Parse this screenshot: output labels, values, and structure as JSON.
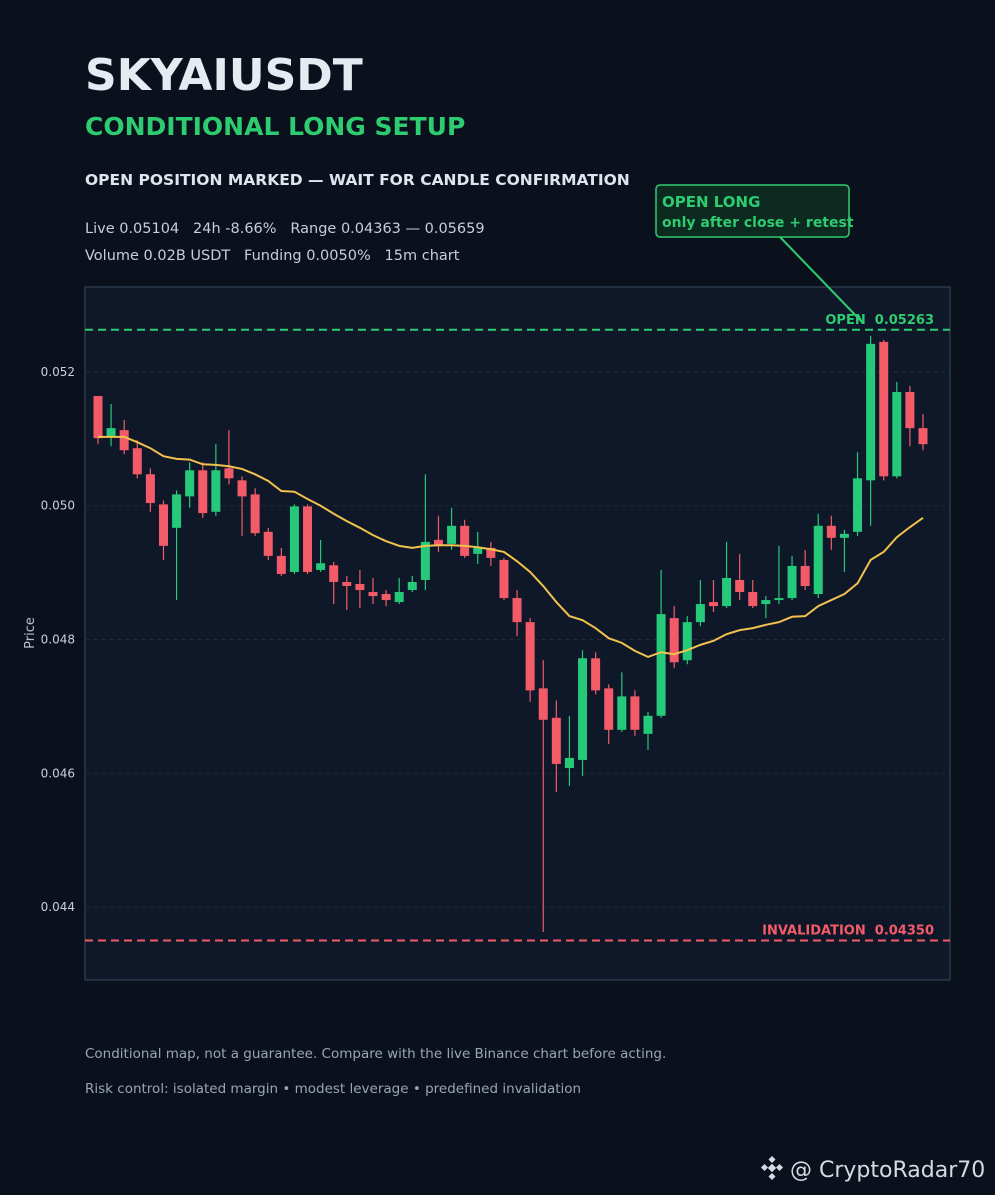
{
  "header": {
    "title": "SKYAIUSDT",
    "subtitle": "CONDITIONAL LONG SETUP",
    "status": "OPEN POSITION MARKED — WAIT FOR CANDLE CONFIRMATION",
    "stats": [
      "Live 0.05104   24h -8.66%   Range 0.04363 — 0.05659",
      "Volume 0.02B USDT   Funding 0.0050%   15m chart"
    ]
  },
  "chart_data": {
    "type": "candlestick",
    "ylabel": "Price",
    "open": [
      0.05164,
      0.05104,
      0.05113,
      0.05086,
      0.05047,
      0.05002,
      0.04967,
      0.05014,
      0.05053,
      0.04991,
      0.05056,
      0.05038,
      0.05017,
      0.04961,
      0.04925,
      0.04901,
      0.04999,
      0.04904,
      0.04911,
      0.04886,
      0.04883,
      0.04871,
      0.04868,
      0.04856,
      0.04874,
      0.04889,
      0.04949,
      0.04943,
      0.0497,
      0.04928,
      0.04937,
      0.04919,
      0.04862,
      0.04826,
      0.04727,
      0.04683,
      0.04608,
      0.0462,
      0.04772,
      0.04727,
      0.04665,
      0.04715,
      0.04659,
      0.04686,
      0.04832,
      0.04769,
      0.04826,
      0.04856,
      0.0485,
      0.04889,
      0.04871,
      0.04853,
      0.04859,
      0.04862,
      0.0491,
      0.04868,
      0.0497,
      0.04952,
      0.04961,
      0.05038,
      0.05245,
      0.05044,
      0.0517,
      0.05116
    ],
    "high": [
      0.05164,
      0.05152,
      0.05128,
      0.05098,
      0.05056,
      0.05008,
      0.05023,
      0.05065,
      0.05065,
      0.05092,
      0.05113,
      0.05044,
      0.05026,
      0.04967,
      0.04937,
      0.05002,
      0.05002,
      0.04949,
      0.04916,
      0.04895,
      0.04904,
      0.04892,
      0.04874,
      0.04892,
      0.04895,
      0.05047,
      0.04985,
      0.04997,
      0.04979,
      0.04961,
      0.04946,
      0.04922,
      0.04874,
      0.04832,
      0.04769,
      0.04709,
      0.04686,
      0.04784,
      0.04781,
      0.04733,
      0.04751,
      0.04724,
      0.04692,
      0.04904,
      0.0485,
      0.04835,
      0.04889,
      0.04889,
      0.04946,
      0.04928,
      0.04889,
      0.04865,
      0.0494,
      0.04925,
      0.04934,
      0.04988,
      0.04985,
      0.04964,
      0.0508,
      0.05254,
      0.05248,
      0.05185,
      0.05179,
      0.05137
    ],
    "low": [
      0.05092,
      0.05089,
      0.05077,
      0.05041,
      0.04991,
      0.04919,
      0.04859,
      0.04997,
      0.04982,
      0.04985,
      0.05032,
      0.04955,
      0.04955,
      0.04919,
      0.04895,
      0.04898,
      0.04898,
      0.04901,
      0.04853,
      0.04844,
      0.04847,
      0.04853,
      0.0485,
      0.04853,
      0.04871,
      0.04874,
      0.04931,
      0.04934,
      0.04922,
      0.04913,
      0.0491,
      0.04859,
      0.04805,
      0.04707,
      0.04363,
      0.04572,
      0.04581,
      0.04596,
      0.04718,
      0.04644,
      0.04662,
      0.04656,
      0.04635,
      0.04683,
      0.04757,
      0.04763,
      0.0482,
      0.04841,
      0.04847,
      0.04859,
      0.04847,
      0.04832,
      0.04853,
      0.04859,
      0.04874,
      0.04862,
      0.04934,
      0.04901,
      0.04955,
      0.0497,
      0.05038,
      0.05041,
      0.05089,
      0.05083
    ],
    "close": [
      0.05101,
      0.05116,
      0.05083,
      0.05047,
      0.05004,
      0.0494,
      0.05017,
      0.05053,
      0.04989,
      0.05053,
      0.05041,
      0.05014,
      0.04959,
      0.04925,
      0.04898,
      0.04999,
      0.04901,
      0.04914,
      0.04886,
      0.0488,
      0.04874,
      0.04865,
      0.04859,
      0.04871,
      0.04886,
      0.04946,
      0.0494,
      0.0497,
      0.04925,
      0.04937,
      0.04922,
      0.04862,
      0.04826,
      0.04724,
      0.0468,
      0.04614,
      0.04623,
      0.04772,
      0.04724,
      0.04665,
      0.04715,
      0.04665,
      0.04686,
      0.04838,
      0.04766,
      0.04826,
      0.04853,
      0.0485,
      0.04892,
      0.04871,
      0.0485,
      0.04859,
      0.04862,
      0.0491,
      0.0488,
      0.0497,
      0.04952,
      0.04958,
      0.05041,
      0.05242,
      0.05044,
      0.0517,
      0.05116,
      0.05092
    ],
    "up_color": "#26c97a",
    "down_color": "#f45b69",
    "ma": {
      "color": "#f2c14e",
      "values": [
        0.05103,
        0.05103,
        0.05103,
        0.05095,
        0.05086,
        0.05074,
        0.0507,
        0.05069,
        0.05062,
        0.05061,
        0.05059,
        0.05055,
        0.05047,
        0.05037,
        0.05022,
        0.05021,
        0.0501,
        0.05,
        0.04988,
        0.04977,
        0.04967,
        0.04956,
        0.04947,
        0.0494,
        0.04937,
        0.0494,
        0.04941,
        0.04941,
        0.0494,
        0.04938,
        0.04935,
        0.04931,
        0.04917,
        0.04901,
        0.0488,
        0.04856,
        0.04835,
        0.04829,
        0.04817,
        0.04802,
        0.04795,
        0.04783,
        0.04774,
        0.04781,
        0.04778,
        0.04784,
        0.04792,
        0.04798,
        0.04808,
        0.04814,
        0.04817,
        0.04822,
        0.04826,
        0.04834,
        0.04835,
        0.0485,
        0.04859,
        0.04868,
        0.04884,
        0.04919,
        0.04931,
        0.04953,
        0.04968,
        0.04982
      ]
    },
    "ylim": [
      0.04291,
      0.05327
    ],
    "yticks": [
      0.044,
      0.046,
      0.048,
      {
        "value": 0.05,
        "label": "0.050"
      },
      0.052
    ],
    "grid": true,
    "levels": [
      {
        "name": "OPEN",
        "value": 0.05263,
        "color": "#2ecc71"
      },
      {
        "name": "INVALIDATION",
        "value": 0.0435,
        "value_label": "0.04350",
        "color": "#f45b69"
      }
    ],
    "annotation": {
      "lines": [
        "OPEN LONG",
        "only after close + retest"
      ],
      "color": "#2ecc71"
    }
  },
  "footer": {
    "notes": [
      "Conditional map, not a guarantee. Compare with the live Binance chart before acting.",
      "Risk control: isolated margin • modest leverage • predefined invalidation"
    ],
    "watermark": "@ CryptoRadar70"
  }
}
